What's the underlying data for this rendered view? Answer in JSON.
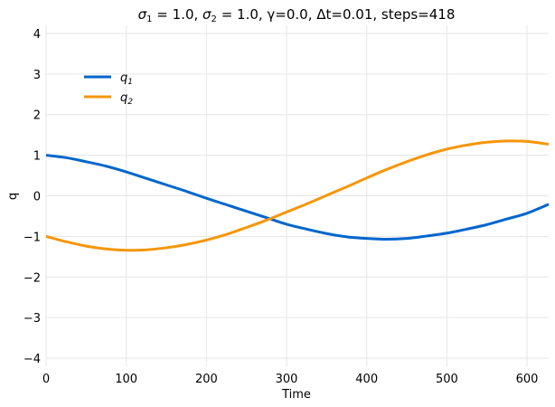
{
  "chart_data": {
    "type": "line",
    "title": {
      "s1_symbol": "σ",
      "s1_sub": "1",
      "s1_value": " = 1.0, ",
      "s2_symbol": "σ",
      "s2_sub": "2",
      "s2_value": " = 1.0, γ=0.0, Δt=0.01, steps=418"
    },
    "xlabel": "Time",
    "ylabel": "q",
    "xlim": [
      0,
      627
    ],
    "ylim": [
      -4.2,
      4.2
    ],
    "xticks": [
      0,
      100,
      200,
      300,
      400,
      500,
      600
    ],
    "yticks": [
      4,
      3,
      2,
      1,
      0,
      -1,
      -2,
      -3,
      -4
    ],
    "ytick_labels": [
      "4",
      "3",
      "2",
      "1",
      "0",
      "−1",
      "−2",
      "−3",
      "−4"
    ],
    "grid": true,
    "legend": "upper-left",
    "series": [
      {
        "name_base": "q",
        "name_sub": "1",
        "color": "#0066cc",
        "x": [
          0,
          25,
          50,
          75,
          100,
          125,
          150,
          175,
          200,
          225,
          250,
          275,
          300,
          325,
          350,
          375,
          400,
          425,
          450,
          475,
          500,
          525,
          550,
          575,
          600,
          627
        ],
        "y": [
          1.0,
          0.94,
          0.84,
          0.73,
          0.59,
          0.43,
          0.27,
          0.11,
          -0.06,
          -0.22,
          -0.38,
          -0.54,
          -0.7,
          -0.82,
          -0.93,
          -1.01,
          -1.05,
          -1.07,
          -1.05,
          -0.99,
          -0.92,
          -0.82,
          -0.71,
          -0.57,
          -0.43,
          -0.21
        ]
      },
      {
        "name_base": "q",
        "name_sub": "2",
        "color": "#f5960a",
        "x": [
          0,
          25,
          50,
          75,
          100,
          125,
          150,
          175,
          200,
          225,
          250,
          275,
          300,
          325,
          350,
          375,
          400,
          425,
          450,
          475,
          500,
          525,
          550,
          575,
          600,
          627
        ],
        "y": [
          -1.0,
          -1.13,
          -1.24,
          -1.31,
          -1.34,
          -1.33,
          -1.28,
          -1.2,
          -1.09,
          -0.95,
          -0.78,
          -0.6,
          -0.4,
          -0.2,
          0.01,
          0.22,
          0.44,
          0.65,
          0.84,
          1.01,
          1.15,
          1.25,
          1.32,
          1.35,
          1.34,
          1.27
        ]
      }
    ]
  }
}
